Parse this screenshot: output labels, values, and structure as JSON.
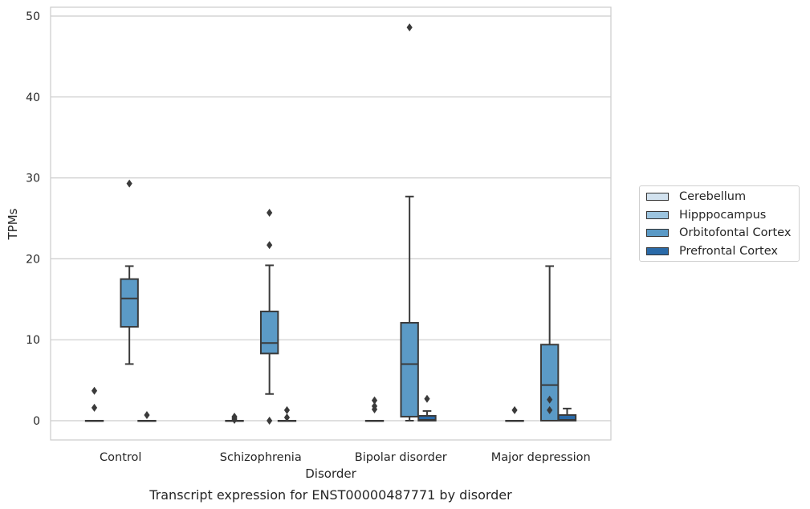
{
  "chart_data": {
    "type": "box",
    "title": "Transcript expression for ENST00000487771 by disorder",
    "xlabel": "Disorder",
    "ylabel": "TPMs",
    "ylim": [
      -2.4,
      51.2
    ],
    "yticks": [
      0,
      10,
      20,
      30,
      40,
      50
    ],
    "grid": true,
    "legend_position": "right",
    "categories": [
      "Control",
      "Schizophrenia",
      "Bipolar disorder",
      "Major depression"
    ],
    "series": [
      {
        "name": "Cerebellum",
        "color": "#d2e2ef",
        "boxes": [
          {
            "q1": 0,
            "median": 0,
            "q3": 0,
            "whisker_low": 0,
            "whisker_high": 0,
            "outliers": [
              1.6,
              3.7
            ]
          },
          {
            "q1": 0,
            "median": 0,
            "q3": 0,
            "whisker_low": 0,
            "whisker_high": 0,
            "outliers": [
              0.1,
              0.3,
              0.5
            ]
          },
          {
            "q1": 0,
            "median": 0,
            "q3": 0,
            "whisker_low": 0,
            "whisker_high": 0,
            "outliers": [
              1.4,
              1.8,
              2.5
            ]
          },
          {
            "q1": 0,
            "median": 0,
            "q3": 0,
            "whisker_low": 0,
            "whisker_high": 0,
            "outliers": [
              1.3
            ]
          }
        ]
      },
      {
        "name": "Hipppocampus",
        "color": "#9cc4df",
        "boxes": [
          null,
          null,
          null,
          null
        ]
      },
      {
        "name": "Orbitofontal Cortex",
        "color": "#5b9ac6",
        "boxes": [
          {
            "q1": 11.6,
            "median": 15.1,
            "q3": 17.5,
            "whisker_low": 7.0,
            "whisker_high": 19.1,
            "outliers": [
              29.3
            ]
          },
          {
            "q1": 8.3,
            "median": 9.6,
            "q3": 13.5,
            "whisker_low": 3.3,
            "whisker_high": 19.2,
            "outliers": [
              0.0,
              21.7,
              25.7
            ]
          },
          {
            "q1": 0.5,
            "median": 7.0,
            "q3": 12.1,
            "whisker_low": 0,
            "whisker_high": 27.7,
            "outliers": [
              48.6
            ]
          },
          {
            "q1": 0,
            "median": 4.4,
            "q3": 9.4,
            "whisker_low": 0,
            "whisker_high": 19.1,
            "outliers": [
              1.3,
              2.6
            ]
          }
        ]
      },
      {
        "name": "Prefrontal Cortex",
        "color": "#2a6aa8",
        "boxes": [
          {
            "q1": 0,
            "median": 0,
            "q3": 0,
            "whisker_low": 0,
            "whisker_high": 0,
            "outliers": [
              0.7
            ]
          },
          {
            "q1": 0,
            "median": 0,
            "q3": 0,
            "whisker_low": 0,
            "whisker_high": 0,
            "outliers": [
              0.4,
              1.3
            ]
          },
          {
            "q1": 0,
            "median": 0.1,
            "q3": 0.6,
            "whisker_low": 0,
            "whisker_high": 1.2,
            "outliers": [
              2.7
            ]
          },
          {
            "q1": 0,
            "median": 0.1,
            "q3": 0.7,
            "whisker_low": 0,
            "whisker_high": 1.5,
            "outliers": []
          }
        ]
      }
    ]
  }
}
